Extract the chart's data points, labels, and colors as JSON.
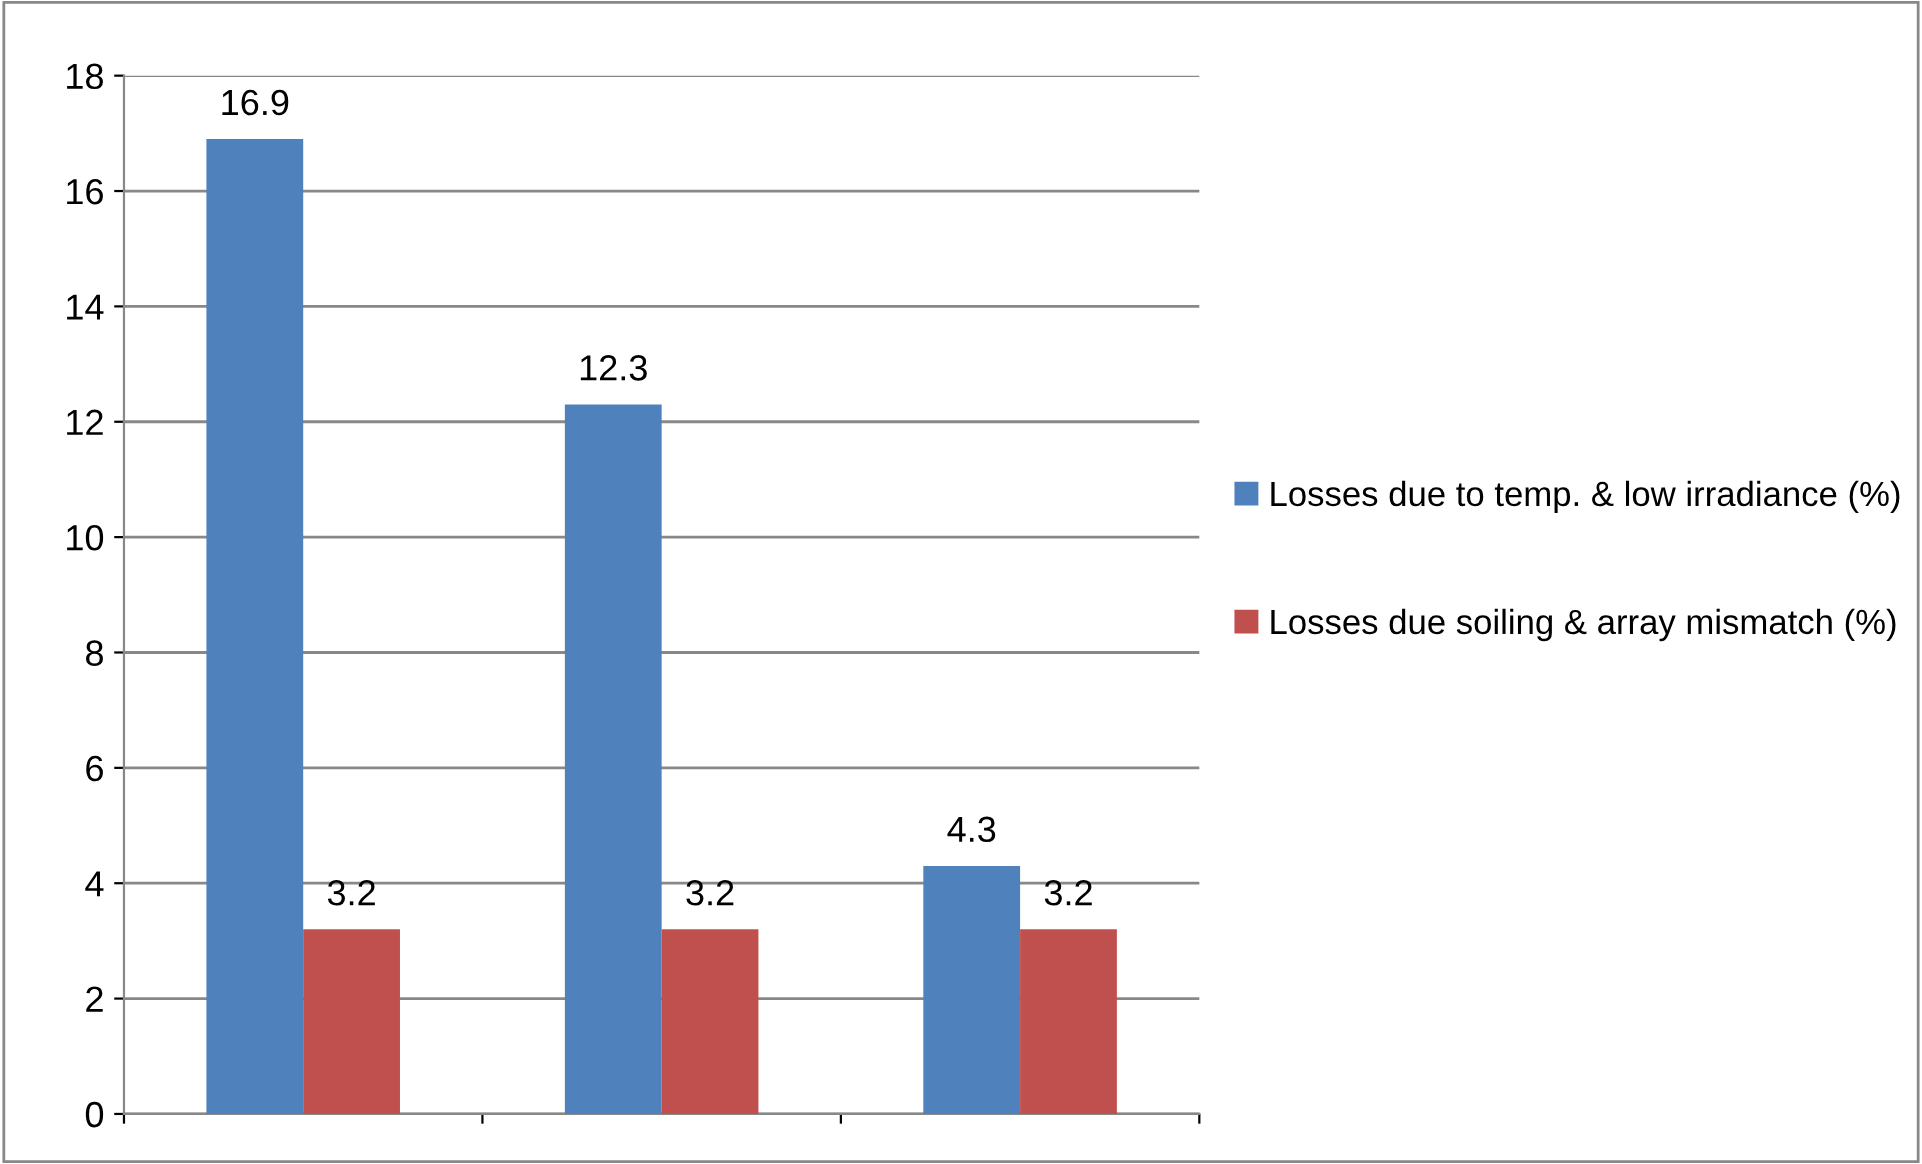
{
  "chart_data": {
    "type": "bar",
    "categories": [
      null,
      null,
      null
    ],
    "series": [
      {
        "name": "Losses due to temp. & low irradiance (%)",
        "color": "#4f81bd",
        "values": [
          16.9,
          12.3,
          4.3
        ]
      },
      {
        "name": "Losses due soiling & array mismatch (%)",
        "color": "#c0504d",
        "values": [
          3.2,
          3.2,
          3.2
        ]
      }
    ],
    "ylim": [
      0,
      18
    ],
    "yticks": [
      0,
      2,
      4,
      6,
      8,
      10,
      12,
      14,
      16,
      18
    ],
    "grid": "y",
    "legend": "right",
    "data_labels": true,
    "tick_labels": "y"
  }
}
